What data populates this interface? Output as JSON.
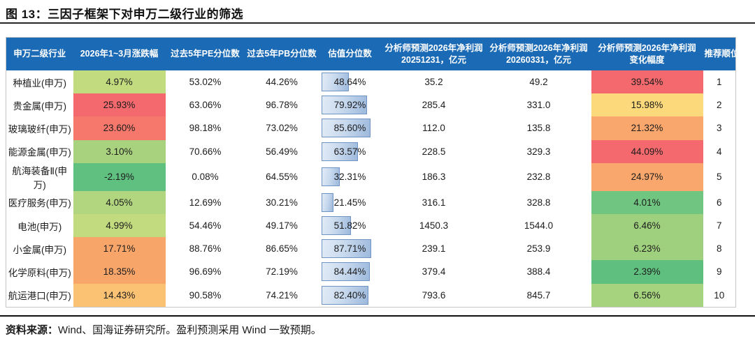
{
  "figure": {
    "title": "图 13：三因子框架下对申万二级行业的筛选",
    "source_label": "资料来源：",
    "source_text": "Wind、国海证券研究所。盈利预测采用 Wind 一致预期。"
  },
  "colors": {
    "header_bg": "#1b6ab5",
    "header_text": "#ffffff",
    "bar_border": "#6f94c4",
    "bar_fill_light": "#e2ebf6",
    "bar_fill_dark": "#9db9dc",
    "red": "#f4696d",
    "orange": "#f8a56a",
    "yellow": "#fcd97a",
    "light_green": "#c3db7f",
    "green": "#60c080"
  },
  "table": {
    "headers": [
      "申万二级行业",
      "2026年1~3月涨跌幅",
      "过去5年PE分位数",
      "过去5年PB分位数",
      "估值分位数",
      "分析师预测2026年净利润\n20251231，亿元",
      "分析师预测2026年净利润\n20260331，亿元",
      "分析师预测2026年净利润\n变化幅度",
      "推荐顺位"
    ],
    "rows": [
      {
        "industry": "种植业(申万)",
        "change": "4.97%",
        "change_bg": "#c3db7f",
        "pe_pct": "53.02%",
        "pb_pct": "44.26%",
        "valuation_pct": "48.64%",
        "valuation_value": 48.64,
        "profit_20251231": "35.2",
        "profit_20260331": "49.2",
        "profit_change": "39.54%",
        "profit_change_bg": "#f4696d",
        "rank": "1"
      },
      {
        "industry": "贵金属(申万)",
        "change": "25.93%",
        "change_bg": "#f4696d",
        "pe_pct": "63.06%",
        "pb_pct": "96.78%",
        "valuation_pct": "79.92%",
        "valuation_value": 79.92,
        "profit_20251231": "285.4",
        "profit_20260331": "331.0",
        "profit_change": "15.98%",
        "profit_change_bg": "#fcd97a",
        "rank": "2"
      },
      {
        "industry": "玻璃玻纤(申万)",
        "change": "23.60%",
        "change_bg": "#f6786c",
        "pe_pct": "98.18%",
        "pb_pct": "73.02%",
        "valuation_pct": "85.60%",
        "valuation_value": 85.6,
        "profit_20251231": "112.0",
        "profit_20260331": "135.8",
        "profit_change": "21.32%",
        "profit_change_bg": "#f9a76c",
        "rank": "3"
      },
      {
        "industry": "能源金属(申万)",
        "change": "3.10%",
        "change_bg": "#a9d27e",
        "pe_pct": "70.66%",
        "pb_pct": "56.49%",
        "valuation_pct": "63.57%",
        "valuation_value": 63.57,
        "profit_20251231": "228.5",
        "profit_20260331": "329.3",
        "profit_change": "44.09%",
        "profit_change_bg": "#f4696d",
        "rank": "4"
      },
      {
        "industry": "航海装备Ⅱ(申万)",
        "change": "-2.19%",
        "change_bg": "#60c080",
        "pe_pct": "0.08%",
        "pb_pct": "64.55%",
        "valuation_pct": "32.31%",
        "valuation_value": 32.31,
        "profit_20251231": "186.3",
        "profit_20260331": "232.8",
        "profit_change": "24.97%",
        "profit_change_bg": "#f9a76c",
        "rank": "5"
      },
      {
        "industry": "医疗服务(申万)",
        "change": "4.05%",
        "change_bg": "#b2d67f",
        "pe_pct": "12.69%",
        "pb_pct": "30.21%",
        "valuation_pct": "21.45%",
        "valuation_value": 21.45,
        "profit_20251231": "316.1",
        "profit_20260331": "328.8",
        "profit_change": "4.01%",
        "profit_change_bg": "#70c580",
        "rank": "6"
      },
      {
        "industry": "电池(申万)",
        "change": "4.99%",
        "change_bg": "#c3db7f",
        "pe_pct": "54.46%",
        "pb_pct": "49.17%",
        "valuation_pct": "51.82%",
        "valuation_value": 51.82,
        "profit_20251231": "1450.3",
        "profit_20260331": "1544.0",
        "profit_change": "6.46%",
        "profit_change_bg": "#9fd07e",
        "rank": "7"
      },
      {
        "industry": "小金属(申万)",
        "change": "17.71%",
        "change_bg": "#f8a56a",
        "pe_pct": "88.76%",
        "pb_pct": "86.65%",
        "valuation_pct": "87.71%",
        "valuation_value": 87.71,
        "profit_20251231": "239.1",
        "profit_20260331": "253.9",
        "profit_change": "6.23%",
        "profit_change_bg": "#9fd07e",
        "rank": "8"
      },
      {
        "industry": "化学原料(申万)",
        "change": "18.35%",
        "change_bg": "#f8a56a",
        "pe_pct": "96.69%",
        "pb_pct": "72.19%",
        "valuation_pct": "84.44%",
        "valuation_value": 84.44,
        "profit_20251231": "379.4",
        "profit_20260331": "388.4",
        "profit_change": "2.39%",
        "profit_change_bg": "#5fbf7e",
        "rank": "9"
      },
      {
        "industry": "航运港口(申万)",
        "change": "14.43%",
        "change_bg": "#fbc274",
        "pe_pct": "90.58%",
        "pb_pct": "74.21%",
        "valuation_pct": "82.40%",
        "valuation_value": 82.4,
        "profit_20251231": "793.6",
        "profit_20260331": "845.7",
        "profit_change": "6.56%",
        "profit_change_bg": "#a6d47e",
        "rank": "10"
      }
    ]
  }
}
